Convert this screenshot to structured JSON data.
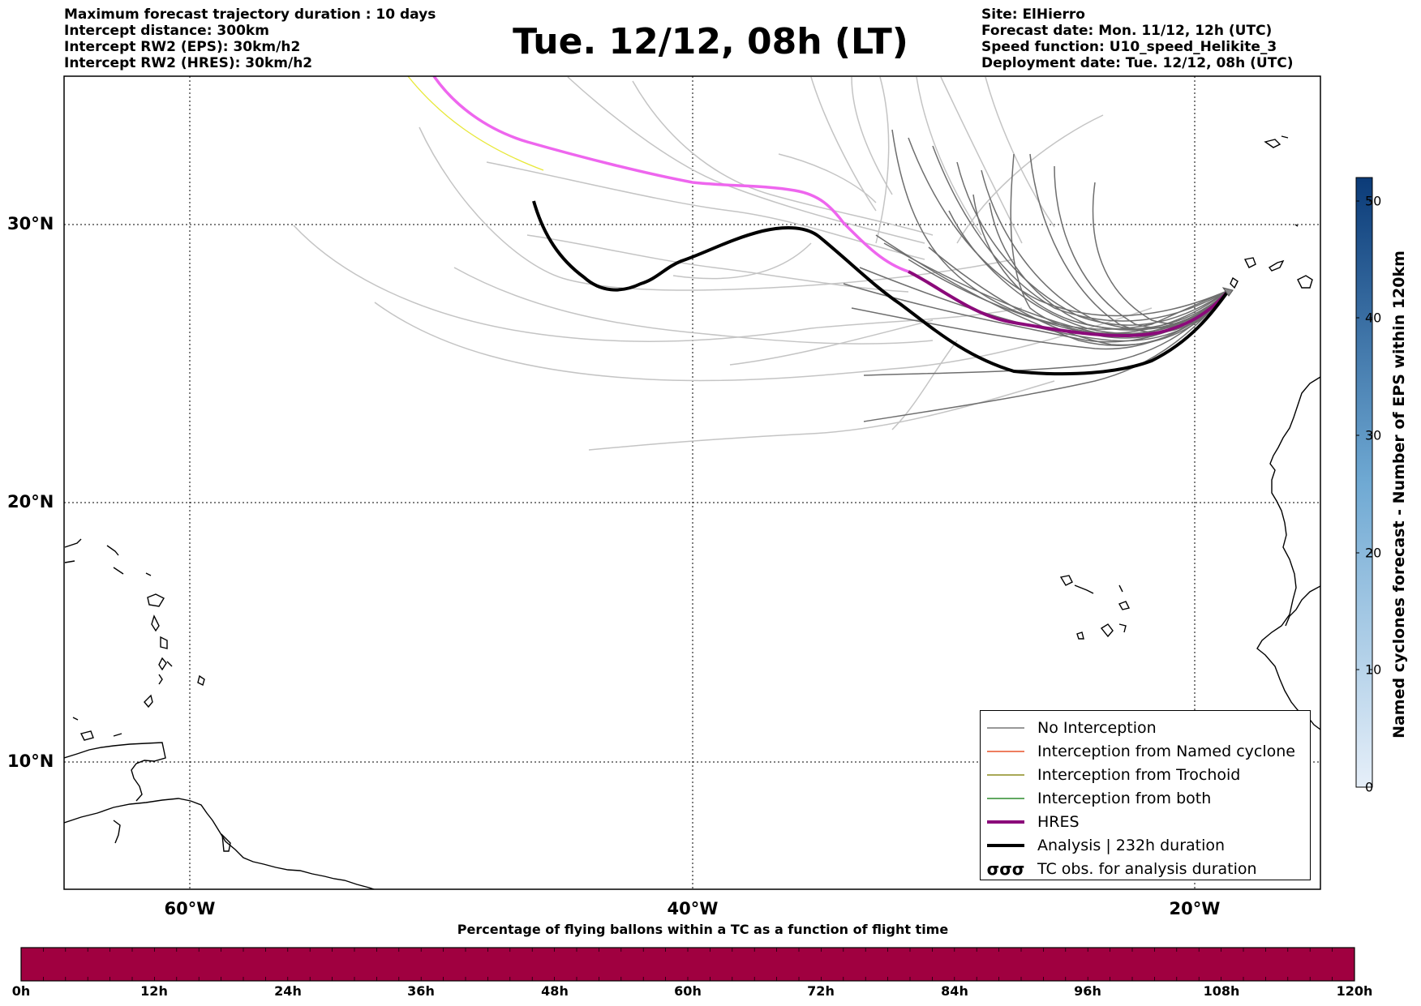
{
  "header": {
    "left_lines": [
      "Maximum forecast trajectory duration : 10 days",
      "Intercept distance: 300km",
      "Intercept RW2 (EPS):  30km/h2",
      "Intercept RW2 (HRES): 30km/h2"
    ],
    "title": "Tue. 12/12, 08h (LT)",
    "right_lines": [
      "Site: ElHierro",
      "Forecast date: Mon. 11/12, 12h (UTC)",
      "Speed function: U10_speed_Helikite_3",
      "Deployment date: Tue. 12/12, 08h (UTC)"
    ]
  },
  "map": {
    "lon_range": [
      -65,
      15
    ],
    "lat_range": [
      5,
      35
    ],
    "lat_labels": [
      "30°N",
      "20°N",
      "10°N"
    ],
    "lat_values": [
      30,
      20,
      10
    ],
    "lon_labels": [
      "60°W",
      "40°W",
      "20°W"
    ],
    "lon_values": [
      -60,
      -40,
      -20
    ],
    "gridlines": true
  },
  "legend": {
    "items": [
      {
        "label": "No Interception",
        "color": "#777777",
        "style": "thin"
      },
      {
        "label": "Interception from Named cyclone",
        "color": "#e8542a",
        "style": "thin"
      },
      {
        "label": "Interception from Trochoid",
        "color": "#8c8c1e",
        "style": "thin"
      },
      {
        "label": "Interception from both",
        "color": "#2e8b2e",
        "style": "thin"
      },
      {
        "label": "HRES",
        "color": "#8b0a7a",
        "style": "thick"
      },
      {
        "label": "Analysis | 232h duration",
        "color": "#000000",
        "style": "thick"
      },
      {
        "label": "TC obs. for analysis duration",
        "color": "#000000",
        "style": "symbols",
        "symbol": "σσσ"
      }
    ]
  },
  "colorbar": {
    "title": "Named cyclones forecast - Number of EPS within 120km",
    "ticks": [
      "0",
      "10",
      "20",
      "30",
      "40",
      "50"
    ],
    "tick_values": [
      0,
      10,
      20,
      30,
      40,
      50
    ],
    "max": 52,
    "color_low": "#e6eff9",
    "color_high": "#0b3b78"
  },
  "bottom_bar": {
    "title": "Percentage of flying ballons within a TC as a function of flight time",
    "ticks": [
      "0h",
      "12h",
      "24h",
      "36h",
      "48h",
      "60h",
      "72h",
      "84h",
      "96h",
      "108h",
      "120h"
    ],
    "fill_color": "#a00040"
  }
}
